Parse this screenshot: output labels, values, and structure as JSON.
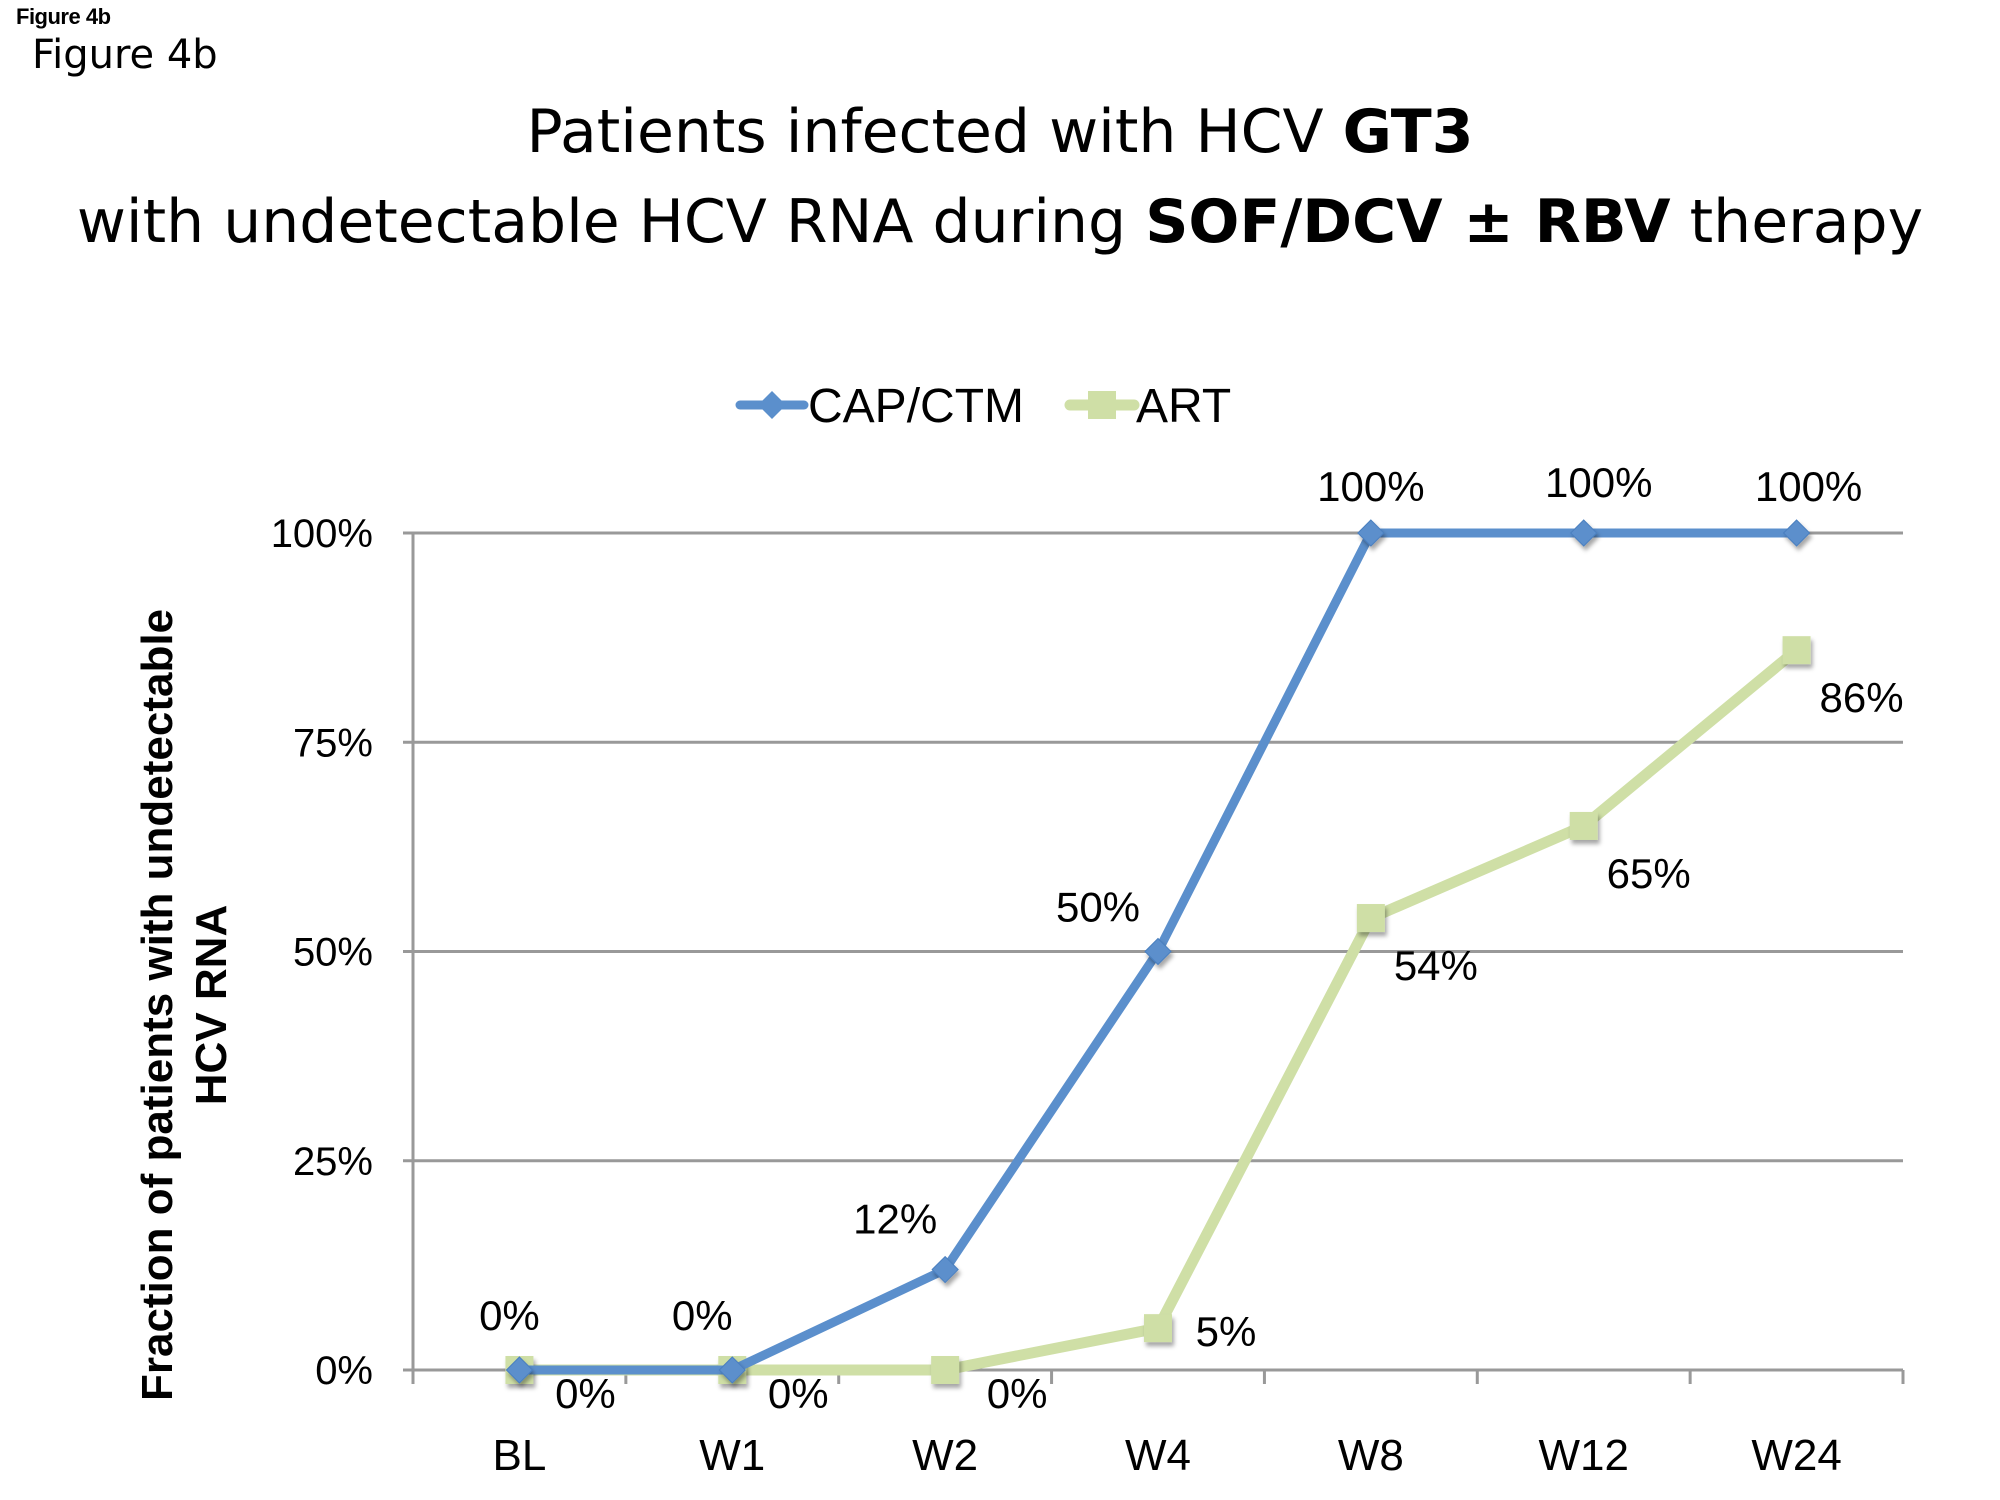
{
  "figure_label_small": "Figure 4b",
  "figure_label_large": "Figure 4b",
  "title": {
    "line1_normal": "Patients infected with HCV ",
    "line1_bold": "GT3",
    "line2_normal_a": "with undetectable HCV RNA during ",
    "line2_bold_a": "SOF/DCV ± RBV",
    "line2_normal_b": " therapy"
  },
  "colors": {
    "cap_ctm": "#5b8fcc",
    "art": "#cfdfa6",
    "grid": "#999999"
  },
  "chart_data": {
    "type": "line",
    "title": "Patients infected with HCV GT3 with undetectable HCV RNA during SOF/DCV ± RBV therapy",
    "xlabel": "",
    "ylabel_line1": "Fraction of patients with undetectable",
    "ylabel_line2": "HCV RNA",
    "categories": [
      "BL",
      "W1",
      "W2",
      "W4",
      "W8",
      "W12",
      "W24"
    ],
    "ylim": [
      0,
      100
    ],
    "yticks": [
      0,
      25,
      50,
      75,
      100
    ],
    "ytick_labels": [
      "0%",
      "25%",
      "50%",
      "75%",
      "100%"
    ],
    "grid": true,
    "legend_position": "top-center",
    "series": [
      {
        "name": "CAP/CTM",
        "marker": "diamond",
        "values": [
          0,
          0,
          12,
          50,
          100,
          100,
          100
        ],
        "labels": [
          "0%",
          "0%",
          "12%",
          "50%",
          "100%",
          "100%",
          "100%"
        ]
      },
      {
        "name": "ART",
        "marker": "square",
        "values": [
          0,
          0,
          0,
          5,
          54,
          65,
          86
        ],
        "labels": [
          "0%",
          "0%",
          "0%",
          "5%",
          "54%",
          "65%",
          "86%"
        ]
      }
    ]
  }
}
